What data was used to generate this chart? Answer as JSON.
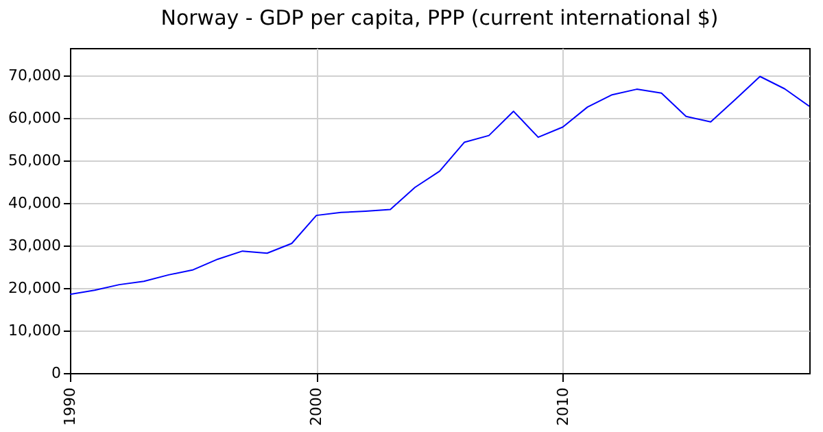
{
  "chart_data": {
    "type": "line",
    "title": "Norway - GDP per capita, PPP (current international $)",
    "x": [
      1990,
      1991,
      1992,
      1993,
      1994,
      1995,
      1996,
      1997,
      1998,
      1999,
      2000,
      2001,
      2002,
      2003,
      2004,
      2005,
      2006,
      2007,
      2008,
      2009,
      2010,
      2011,
      2012,
      2013,
      2014,
      2015,
      2016,
      2017,
      2018,
      2019,
      2020
    ],
    "series": [
      {
        "color": "#0000ff",
        "values": [
          18500,
          19500,
          20800,
          21600,
          23100,
          24300,
          26800,
          28700,
          28200,
          30500,
          37100,
          37800,
          38100,
          38500,
          43700,
          47500,
          54300,
          55900,
          61600,
          55500,
          57900,
          62600,
          65500,
          66800,
          65900,
          60400,
          59100,
          64400,
          69800,
          66900,
          62800
        ]
      }
    ],
    "xlim": [
      1990,
      2020
    ],
    "xticks": [
      1990,
      2000,
      2010
    ],
    "ylim": [
      0,
      76500
    ],
    "yticks": [
      {
        "value": 0,
        "label": "0"
      },
      {
        "value": 10000,
        "label": "10,000"
      },
      {
        "value": 20000,
        "label": "20,000"
      },
      {
        "value": 30000,
        "label": "30,000"
      },
      {
        "value": 40000,
        "label": "40,000"
      },
      {
        "value": 50000,
        "label": "50,000"
      },
      {
        "value": 60000,
        "label": "60,000"
      },
      {
        "value": 70000,
        "label": "70,000"
      }
    ],
    "grid": true,
    "marker": "none",
    "line_style": "solid"
  }
}
